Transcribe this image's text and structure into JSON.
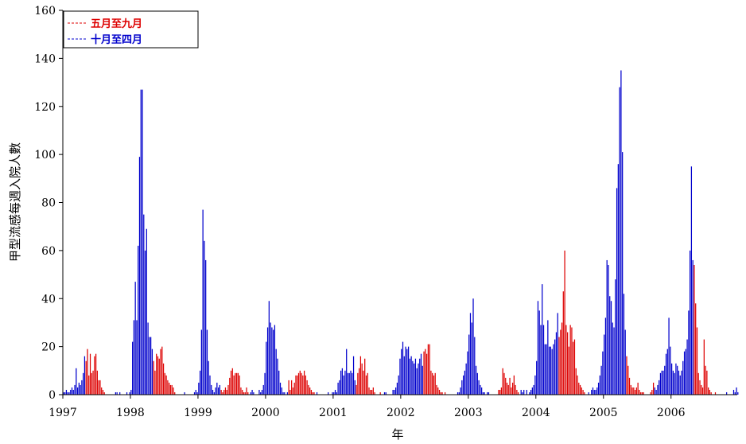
{
  "chart_data": {
    "type": "bar",
    "xlabel": "年",
    "ylabel": "甲型流感每週入院人數",
    "ylim": [
      0,
      160
    ],
    "yticks": [
      0,
      20,
      40,
      60,
      80,
      100,
      120,
      140,
      160
    ],
    "xlim": [
      1997,
      2006.98
    ],
    "xticks": [
      "1997",
      "1998",
      "1999",
      "2000",
      "2001",
      "2002",
      "2003",
      "2004",
      "2005",
      "2006"
    ],
    "grid": false,
    "legend_position": "top-left",
    "colors": {
      "summer": "#dd0000",
      "winter": "#0000cc"
    },
    "series": [
      {
        "name": "五月至九月",
        "color": "#dd0000",
        "key": "summer"
      },
      {
        "name": "十月至四月",
        "color": "#0000cc",
        "key": "winter"
      }
    ],
    "start_year": 1997,
    "values": [
      1,
      1,
      2,
      1,
      1,
      2,
      3,
      2,
      4,
      11,
      3,
      5,
      4,
      6,
      9,
      16,
      14,
      19,
      8,
      17,
      9,
      10,
      16,
      17,
      10,
      6,
      6,
      3,
      2,
      1,
      0,
      0,
      0,
      0,
      0,
      0,
      0,
      1,
      1,
      0,
      1,
      0,
      0,
      0,
      0,
      1,
      0,
      1,
      2,
      22,
      31,
      47,
      31,
      62,
      99,
      127,
      127,
      75,
      60,
      69,
      30,
      24,
      24,
      19,
      14,
      10,
      17,
      16,
      15,
      19,
      20,
      13,
      9,
      8,
      6,
      5,
      4,
      4,
      3,
      1,
      0,
      0,
      0,
      0,
      0,
      0,
      1,
      0,
      0,
      0,
      0,
      0,
      0,
      1,
      2,
      1,
      5,
      10,
      27,
      77,
      64,
      56,
      27,
      14,
      8,
      4,
      2,
      1,
      3,
      5,
      3,
      4,
      2,
      1,
      2,
      3,
      2,
      4,
      7,
      10,
      11,
      8,
      9,
      9,
      9,
      8,
      3,
      2,
      1,
      1,
      3,
      1,
      0,
      1,
      2,
      1,
      0,
      0,
      0,
      2,
      1,
      2,
      4,
      9,
      22,
      28,
      39,
      30,
      28,
      27,
      29,
      19,
      15,
      10,
      5,
      3,
      1,
      1,
      0,
      1,
      6,
      2,
      6,
      3,
      5,
      8,
      8,
      9,
      10,
      9,
      8,
      10,
      8,
      6,
      4,
      3,
      2,
      1,
      1,
      0,
      1,
      0,
      0,
      0,
      0,
      0,
      0,
      0,
      1,
      0,
      0,
      1,
      1,
      2,
      1,
      5,
      6,
      10,
      11,
      8,
      10,
      19,
      9,
      9,
      10,
      9,
      16,
      6,
      4,
      9,
      11,
      16,
      13,
      10,
      15,
      8,
      9,
      3,
      2,
      2,
      3,
      1,
      0,
      0,
      0,
      1,
      0,
      0,
      1,
      1,
      0,
      0,
      0,
      0,
      2,
      2,
      3,
      5,
      8,
      15,
      19,
      22,
      16,
      20,
      19,
      20,
      15,
      16,
      14,
      13,
      15,
      11,
      13,
      15,
      17,
      12,
      18,
      19,
      17,
      21,
      21,
      10,
      9,
      8,
      9,
      4,
      3,
      2,
      1,
      1,
      0,
      1,
      0,
      0,
      0,
      0,
      0,
      0,
      0,
      0,
      1,
      1,
      3,
      6,
      8,
      10,
      13,
      18,
      25,
      34,
      30,
      40,
      24,
      12,
      9,
      6,
      4,
      3,
      1,
      1,
      0,
      1,
      1,
      0,
      0,
      0,
      0,
      0,
      0,
      2,
      2,
      3,
      11,
      9,
      7,
      5,
      4,
      7,
      3,
      5,
      8,
      4,
      2,
      1,
      0,
      2,
      1,
      2,
      0,
      2,
      0,
      1,
      2,
      3,
      4,
      8,
      14,
      39,
      35,
      29,
      46,
      29,
      21,
      21,
      31,
      20,
      20,
      19,
      21,
      23,
      26,
      34,
      24,
      27,
      30,
      43,
      60,
      29,
      26,
      20,
      29,
      28,
      22,
      23,
      11,
      8,
      5,
      4,
      3,
      2,
      1,
      0,
      0,
      1,
      0,
      2,
      3,
      2,
      2,
      3,
      5,
      8,
      12,
      18,
      25,
      32,
      56,
      54,
      41,
      39,
      30,
      28,
      48,
      86,
      96,
      128,
      135,
      101,
      42,
      27,
      16,
      12,
      7,
      4,
      3,
      3,
      2,
      3,
      5,
      2,
      1,
      1,
      1,
      0,
      0,
      0,
      0,
      1,
      2,
      5,
      3,
      2,
      4,
      6,
      9,
      10,
      10,
      12,
      17,
      19,
      32,
      20,
      13,
      10,
      9,
      13,
      12,
      10,
      8,
      10,
      14,
      18,
      19,
      23,
      35,
      60,
      95,
      56,
      54,
      38,
      28,
      9,
      6,
      4,
      3,
      23,
      12,
      10,
      3,
      2,
      1,
      0,
      0,
      1,
      0,
      0,
      0,
      0,
      0,
      0,
      0,
      1,
      0,
      0,
      0,
      0,
      2,
      1,
      3,
      1
    ]
  }
}
